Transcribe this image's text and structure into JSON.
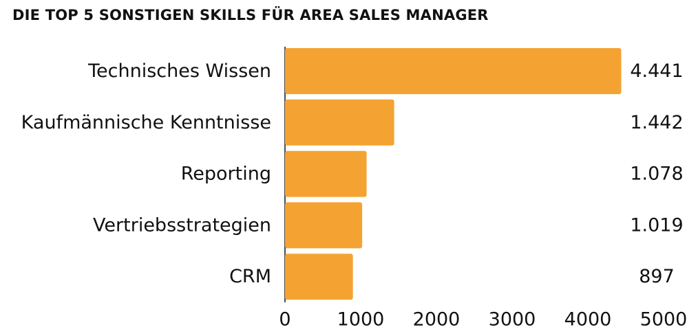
{
  "chart_data": {
    "type": "bar",
    "orientation": "horizontal",
    "title": "DIE TOP 5 SONSTIGEN SKILLS FÜR AREA SALES MANAGER",
    "categories": [
      "Technisches Wissen",
      "Kaufmännische Kenntnisse",
      "Reporting",
      "Vertriebsstrategien",
      "CRM"
    ],
    "values": [
      4441,
      1442,
      1078,
      1019,
      897
    ],
    "value_labels": [
      "4.441",
      "1.442",
      "1.078",
      "1.019",
      "897"
    ],
    "xlim": [
      0,
      5000
    ],
    "xticks": [
      0,
      1000,
      2000,
      3000,
      4000,
      5000
    ],
    "xtick_labels": [
      "0",
      "1000",
      "2000",
      "3000",
      "4000",
      "5000"
    ],
    "bar_color": "#F4A332",
    "grid": false,
    "legend": "none"
  }
}
